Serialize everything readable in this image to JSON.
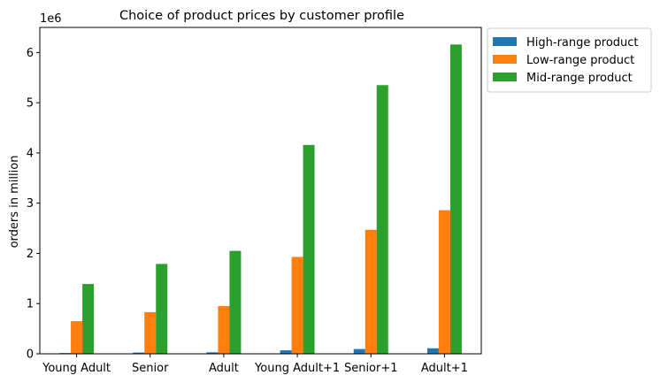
{
  "chart_data": {
    "type": "bar",
    "title": "Choice of product prices by customer profile",
    "xlabel": "",
    "ylabel": "orders in million",
    "y_offset_label": "1e6",
    "categories": [
      "Young Adult",
      "Senior",
      "Adult",
      "Young Adult+1",
      "Senior+1",
      "Adult+1"
    ],
    "series": [
      {
        "name": "High-range product",
        "color": "#1f77b4",
        "values": [
          15000,
          25000,
          30000,
          70000,
          95000,
          110000
        ]
      },
      {
        "name": "Low-range product",
        "color": "#ff7f0e",
        "values": [
          650000,
          830000,
          950000,
          1930000,
          2470000,
          2860000
        ]
      },
      {
        "name": "Mid-range product",
        "color": "#2ca02c",
        "values": [
          1390000,
          1790000,
          2050000,
          4160000,
          5350000,
          6160000
        ]
      }
    ],
    "ylim": [
      0,
      6500000
    ],
    "yticks": [
      0,
      1000000,
      2000000,
      3000000,
      4000000,
      5000000,
      6000000
    ],
    "ytick_labels": [
      "0",
      "1",
      "2",
      "3",
      "4",
      "5",
      "6"
    ],
    "grid": false,
    "legend_position": "outside-top-right"
  }
}
